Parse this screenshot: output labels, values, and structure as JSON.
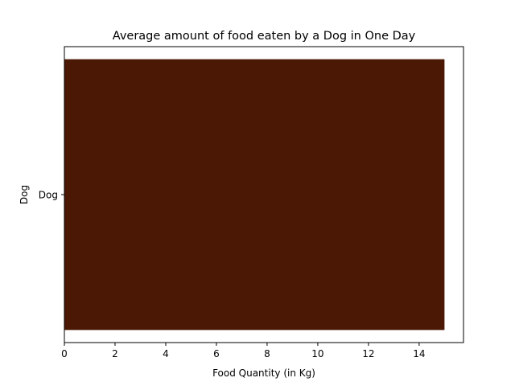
{
  "chart_data": {
    "type": "bar",
    "orientation": "horizontal",
    "title": "Average amount of food eaten by a Dog in One Day",
    "xlabel": "Food Quantity (in Kg)",
    "ylabel": "Dog",
    "categories": [
      "Dog"
    ],
    "values": [
      15
    ],
    "xlim": [
      0,
      15.75
    ],
    "xticks": [
      0,
      2,
      4,
      6,
      8,
      10,
      12,
      14
    ],
    "grid": false,
    "bar_color": "#4a1805"
  }
}
